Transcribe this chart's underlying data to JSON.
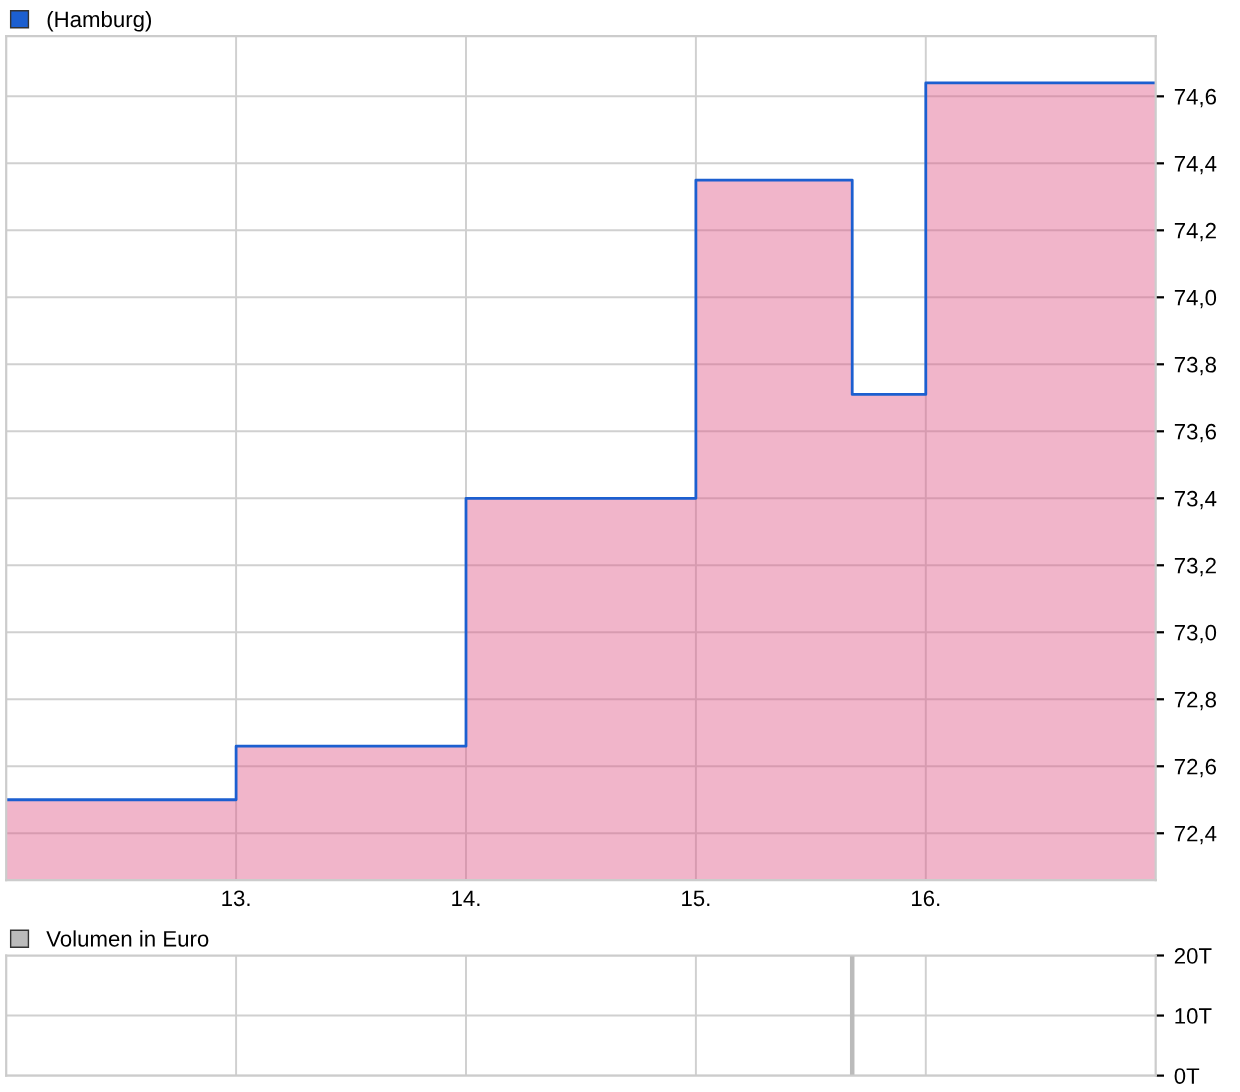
{
  "chart_data": [
    {
      "type": "area",
      "line_style": "solid",
      "legend": "top left",
      "grid": true,
      "tick_labels": true,
      "series": [
        {
          "color": "#e05a8a",
          "x": [
            12,
            13,
            14,
            15,
            15.68,
            16,
            17
          ],
          "values": [
            72.5,
            72.66,
            73.4,
            74.35,
            73.71,
            74.64,
            74.64
          ]
        },
        {
          "type": "step",
          "name": "(Hamburg)",
          "color": "#1c5fd0",
          "x": [
            12,
            13,
            14,
            15,
            15.68,
            16,
            17
          ],
          "values": [
            72.5,
            72.66,
            73.4,
            74.35,
            73.71,
            74.64,
            74.64
          ]
        }
      ],
      "xlim": [
        12,
        17
      ],
      "xticks": [
        {
          "value": 13,
          "label": "13."
        },
        {
          "value": 14,
          "label": "14."
        },
        {
          "value": 15,
          "label": "15."
        },
        {
          "value": 16,
          "label": "16."
        }
      ],
      "ylim": [
        72.26,
        74.78
      ],
      "yticks": [
        {
          "value": 72.4,
          "label": "72,4"
        },
        {
          "value": 72.6,
          "label": "72,6"
        },
        {
          "value": 72.8,
          "label": "72,8"
        },
        {
          "value": 73.0,
          "label": "73,0"
        },
        {
          "value": 73.2,
          "label": "73,2"
        },
        {
          "value": 73.4,
          "label": "73,4"
        },
        {
          "value": 73.6,
          "label": "73,6"
        },
        {
          "value": 73.8,
          "label": "73,8"
        },
        {
          "value": 74.0,
          "label": "74,0"
        },
        {
          "value": 74.2,
          "label": "74,2"
        },
        {
          "value": 74.4,
          "label": "74,4"
        },
        {
          "value": 74.6,
          "label": "74,6"
        }
      ]
    },
    {
      "type": "bar",
      "legend": "top left",
      "grid": true,
      "tick_labels": "y",
      "series": [
        {
          "name": "Volumen in Euro",
          "color": "#bbbbbb",
          "x": [
            15.68
          ],
          "values": [
            20
          ]
        }
      ],
      "xlim": [
        12,
        17
      ],
      "xticks": [
        {
          "value": 13,
          "label": null
        },
        {
          "value": 14,
          "label": null
        },
        {
          "value": 15,
          "label": null
        },
        {
          "value": 16,
          "label": null
        }
      ],
      "ylim": [
        0,
        20
      ],
      "yticks": [
        {
          "value": 0,
          "label": "0T"
        },
        {
          "value": 10,
          "label": "10T"
        },
        {
          "value": 20,
          "label": "20T"
        }
      ]
    }
  ]
}
